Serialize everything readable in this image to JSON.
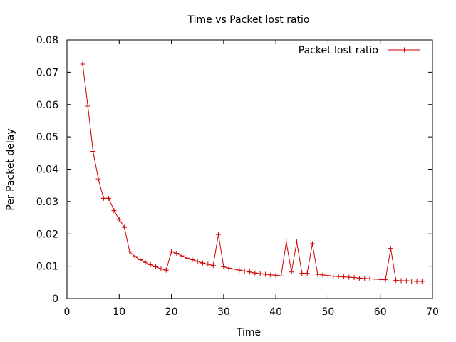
{
  "chart_data": {
    "type": "line",
    "title": "Time vs Packet lost ratio",
    "xlabel": "Time",
    "ylabel": "Per Packet delay",
    "xlim": [
      0,
      70
    ],
    "ylim": [
      0,
      0.08
    ],
    "xticks": [
      0,
      10,
      20,
      30,
      40,
      50,
      60,
      70
    ],
    "yticks": [
      0,
      0.01,
      0.02,
      0.03,
      0.04,
      0.05,
      0.06,
      0.07,
      0.08
    ],
    "xtick_labels": [
      "0",
      "10",
      "20",
      "30",
      "40",
      "50",
      "60",
      "70"
    ],
    "ytick_labels": [
      "0",
      "0.01",
      "0.02",
      "0.03",
      "0.04",
      "0.05",
      "0.06",
      "0.07",
      "0.08"
    ],
    "grid": false,
    "legend_position": "top-right",
    "series": [
      {
        "name": "Packet lost ratio",
        "color": "#cc0000",
        "marker": "plus",
        "x": [
          3,
          4,
          5,
          6,
          7,
          8,
          9,
          10,
          11,
          12,
          13,
          14,
          15,
          16,
          17,
          18,
          19,
          20,
          21,
          22,
          23,
          24,
          25,
          26,
          27,
          28,
          29,
          30,
          31,
          32,
          33,
          34,
          35,
          36,
          37,
          38,
          39,
          40,
          41,
          42,
          43,
          44,
          45,
          46,
          47,
          48,
          49,
          50,
          51,
          52,
          53,
          54,
          55,
          56,
          57,
          58,
          59,
          60,
          61,
          62,
          63,
          64,
          65,
          66,
          67,
          68
        ],
        "y": [
          0.0725,
          0.0595,
          0.0455,
          0.037,
          0.031,
          0.031,
          0.0272,
          0.0245,
          0.022,
          0.0145,
          0.013,
          0.012,
          0.0112,
          0.0105,
          0.0098,
          0.0092,
          0.0088,
          0.0145,
          0.014,
          0.0132,
          0.0125,
          0.012,
          0.0115,
          0.011,
          0.0106,
          0.0102,
          0.0198,
          0.0098,
          0.0094,
          0.0091,
          0.0088,
          0.0085,
          0.0082,
          0.0079,
          0.0077,
          0.0075,
          0.0073,
          0.0072,
          0.007,
          0.0175,
          0.0082,
          0.0175,
          0.0078,
          0.0078,
          0.017,
          0.0075,
          0.0073,
          0.0071,
          0.0069,
          0.0068,
          0.0067,
          0.0066,
          0.0065,
          0.0063,
          0.0062,
          0.0061,
          0.006,
          0.0059,
          0.0058,
          0.0155,
          0.0056,
          0.0055,
          0.0055,
          0.0054,
          0.0053,
          0.0053
        ]
      }
    ]
  }
}
